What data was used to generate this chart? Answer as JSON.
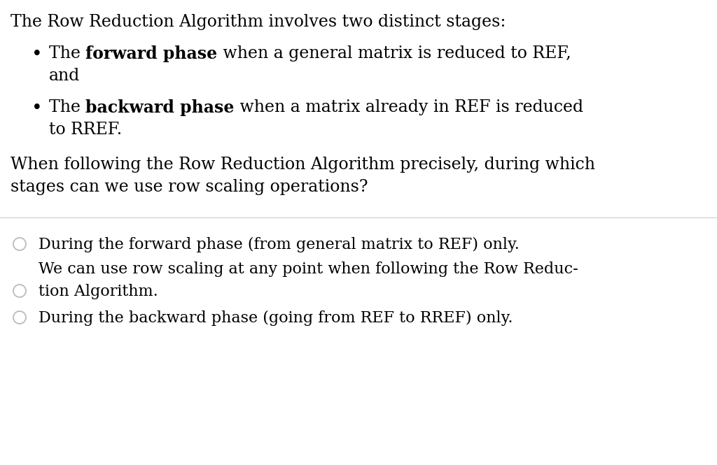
{
  "background_color": "#ffffff",
  "figsize": [
    10.24,
    6.65
  ],
  "dpi": 100,
  "intro_line": "The Row Reduction Algorithm involves two distinct stages:",
  "bullet1_before": "The ",
  "bullet1_bold": "forward phase",
  "bullet1_after": " when a general matrix is reduced to REF,",
  "bullet1_cont": "and",
  "bullet2_before": "The ",
  "bullet2_bold": "backward phase",
  "bullet2_after": " when a matrix already in REF is reduced",
  "bullet2_cont": "to RREF.",
  "question_line1": "When following the Row Reduction Algorithm precisely, during which",
  "question_line2": "stages can we use row scaling operations?",
  "answer1": "During the forward phase (from general matrix to REF) only.",
  "answer2_line1": "We can use row scaling at any point when following the Row Reduc-",
  "answer2_line2": "tion Algorithm.",
  "answer3": "During the backward phase (going from REF to RREF) only.",
  "text_color": "#000000",
  "font_size_main": 17,
  "font_size_answers": 16,
  "radio_color": "#bbbbbb",
  "separator_color": "#cccccc"
}
